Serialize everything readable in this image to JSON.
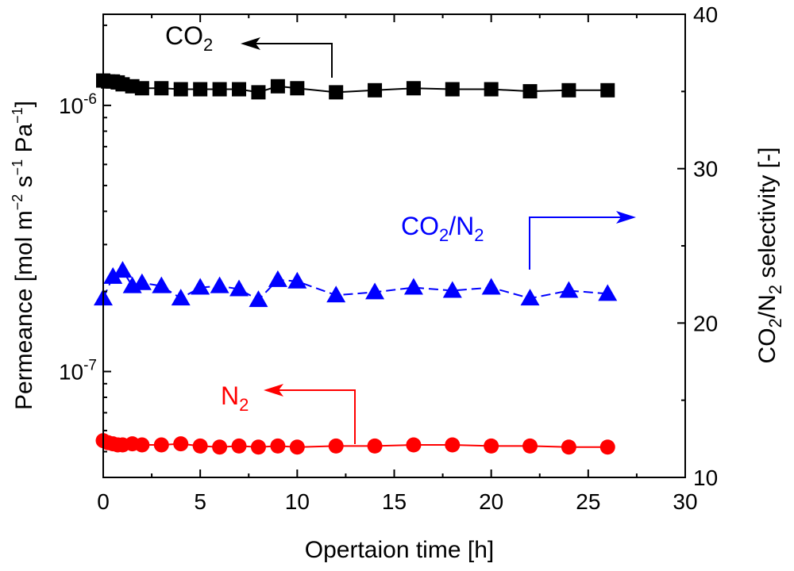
{
  "chart_data": {
    "type": "scatter",
    "xlabel": "Opertaion time [h]",
    "ylabel_left": {
      "prefix": "Permeance [mol m",
      "exp1": "−2",
      "mid1": " s",
      "exp2": "−1",
      "mid2": " Pa",
      "exp3": "−1",
      "suffix": "]"
    },
    "ylabel_right": {
      "part1": "CO",
      "sub1": "2",
      "part2": "/N",
      "sub2": "2",
      "part3": " selectivity [-]"
    },
    "xlim": [
      0,
      30
    ],
    "x_ticks": [
      0,
      5,
      10,
      15,
      20,
      25,
      30
    ],
    "y_left_scale": "log",
    "y_left_lim": [
      4e-08,
      2.2e-06
    ],
    "y_left_ticks": [
      {
        "value": 1e-06,
        "base": "10",
        "exp": "-6"
      },
      {
        "value": 1e-07,
        "base": "10",
        "exp": "-7"
      }
    ],
    "y_right_lim": [
      10,
      40
    ],
    "y_right_ticks": [
      10,
      20,
      30,
      40
    ],
    "series": [
      {
        "name": "CO2",
        "label_main": "CO",
        "label_sub": "2",
        "axis": "left",
        "marker": "square",
        "color": "#000000",
        "line": "solid",
        "x": [
          0,
          0.25,
          0.5,
          0.75,
          1,
          1.5,
          2,
          3,
          4,
          5,
          6,
          7,
          8,
          9,
          10,
          12,
          14,
          16,
          18,
          20,
          22,
          24,
          26
        ],
        "y": [
          1.24e-06,
          1.23e-06,
          1.23e-06,
          1.22e-06,
          1.2e-06,
          1.18e-06,
          1.16e-06,
          1.16e-06,
          1.15e-06,
          1.15e-06,
          1.15e-06,
          1.15e-06,
          1.12e-06,
          1.18e-06,
          1.16e-06,
          1.12e-06,
          1.14e-06,
          1.16e-06,
          1.15e-06,
          1.15e-06,
          1.13e-06,
          1.14e-06,
          1.14e-06
        ]
      },
      {
        "name": "N2",
        "label_main": "N",
        "label_sub": "2",
        "axis": "left",
        "marker": "circle",
        "color": "#ff0000",
        "line": "solid",
        "x": [
          0,
          0.25,
          0.5,
          0.75,
          1,
          1.5,
          2,
          3,
          4,
          5,
          6,
          7,
          8,
          9,
          10,
          12,
          14,
          16,
          18,
          20,
          22,
          24,
          26
        ],
        "y": [
          5.5e-08,
          5.4e-08,
          5.35e-08,
          5.3e-08,
          5.3e-08,
          5.35e-08,
          5.3e-08,
          5.3e-08,
          5.35e-08,
          5.25e-08,
          5.2e-08,
          5.25e-08,
          5.2e-08,
          5.25e-08,
          5.2e-08,
          5.25e-08,
          5.25e-08,
          5.3e-08,
          5.3e-08,
          5.25e-08,
          5.25e-08,
          5.2e-08,
          5.2e-08
        ]
      },
      {
        "name": "CO2/N2",
        "label_main1": "CO",
        "label_sub1": "2",
        "label_main2": "/N",
        "label_sub2": "2",
        "axis": "right",
        "marker": "triangle",
        "color": "#0000ff",
        "line": "dashed",
        "x": [
          0,
          0.5,
          1,
          1.5,
          2,
          3,
          4,
          5,
          6,
          7,
          8,
          9,
          10,
          12,
          14,
          16,
          18,
          20,
          22,
          24,
          26
        ],
        "y": [
          21.6,
          23,
          23.4,
          22.4,
          22.6,
          22.4,
          21.6,
          22.3,
          22.4,
          22.2,
          21.5,
          22.8,
          22.7,
          21.8,
          22.0,
          22.3,
          22.1,
          22.3,
          21.6,
          22.1,
          21.9
        ]
      }
    ]
  }
}
